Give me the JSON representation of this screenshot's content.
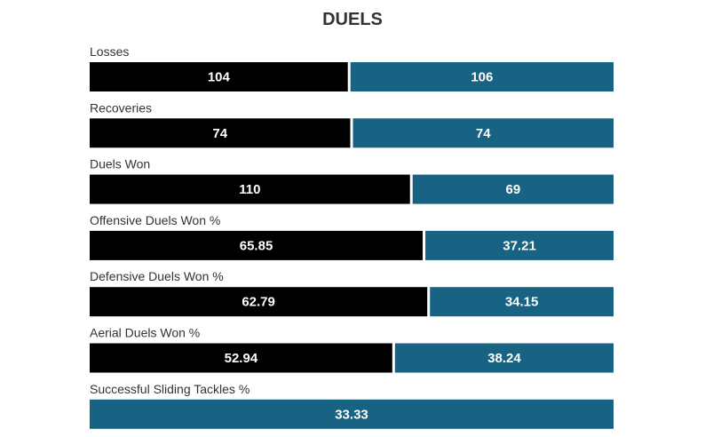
{
  "chart_data": {
    "type": "bar",
    "orientation": "horizontal",
    "stacking": "normalized-100",
    "title": "DUELS",
    "categories": [
      "Losses",
      "Recoveries",
      "Duels Won",
      "Offensive Duels Won %",
      "Defensive Duels Won %",
      "Aerial Duels Won %",
      "Successful Sliding Tackles %"
    ],
    "series": [
      {
        "color": "#000000",
        "values": [
          104,
          74,
          110,
          65.85,
          62.79,
          52.94,
          0
        ]
      },
      {
        "color": "#186283",
        "values": [
          106,
          74,
          69,
          37.21,
          34.15,
          38.24,
          33.33
        ]
      }
    ],
    "value_labels": [
      [
        "104",
        "74",
        "110",
        "65.85",
        "62.79",
        "52.94",
        ""
      ],
      [
        "106",
        "74",
        "69",
        "37.21",
        "34.15",
        "38.24",
        "33.33"
      ]
    ],
    "legend": "none",
    "grid": false
  }
}
